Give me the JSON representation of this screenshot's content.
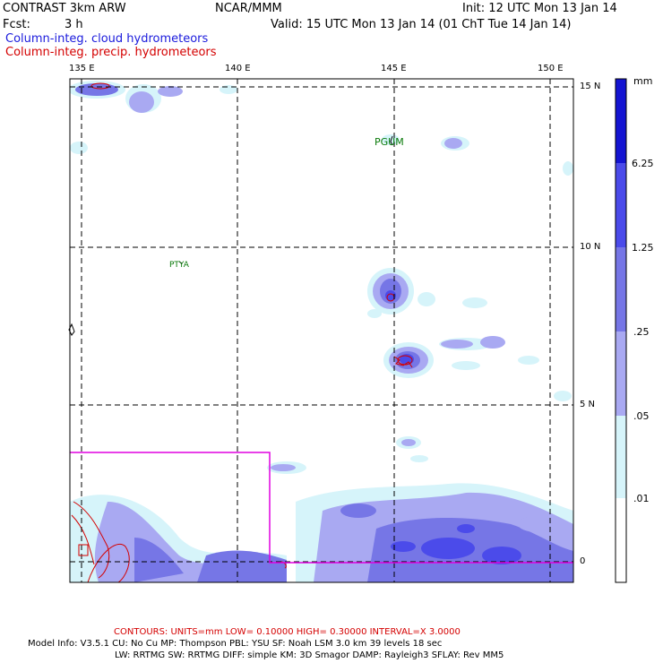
{
  "header": {
    "title": "CONTRAST  3km ARW",
    "center": "NCAR/MMM",
    "init": "Init: 12 UTC Mon 13 Jan 14",
    "fcst_label": "Fcst:",
    "fcst_value": "3 h",
    "valid": "Valid: 15 UTC Mon 13 Jan 14 (01 ChT Tue 14 Jan 14)"
  },
  "legend": {
    "cloud": "Column-integ. cloud hydrometeors",
    "precip": "Column-integ. precip. hydrometeors",
    "cloud_color": "#1a1adc",
    "precip_color": "#d40000"
  },
  "axes": {
    "lon_labels": [
      "135 E",
      "140 E",
      "145 E",
      "150 E"
    ],
    "lat_labels": [
      "15 N",
      "10 N",
      "5 N",
      "0"
    ]
  },
  "stations": {
    "guam": "PGUM",
    "palau": "PTYA"
  },
  "colorbar": {
    "units": "mm",
    "labels": [
      "6.25",
      "1.25",
      ".25",
      ".05",
      ".01"
    ],
    "colors": [
      "#1414d2",
      "#4b4bea",
      "#7676e6",
      "#a9a9f2",
      "#d6f4fa",
      "#ffffff"
    ]
  },
  "footer": {
    "contours": "CONTOURS:  UNITS=mm  LOW= 0.10000     HIGH= 0.30000     INTERVAL=X  3.0000",
    "model_line1": "Model Info: V3.5.1     CU: No Cu      MP: Thompson      PBL: YSU       SF: Noah LSM      3.0 km   39 levels    18 sec",
    "model_line2": "LW: RRTMG     SW: RRTMG   DIFF: simple KM: 3D Smagor DAMP: Rayleigh3  SFLAY: Rev MM5"
  }
}
